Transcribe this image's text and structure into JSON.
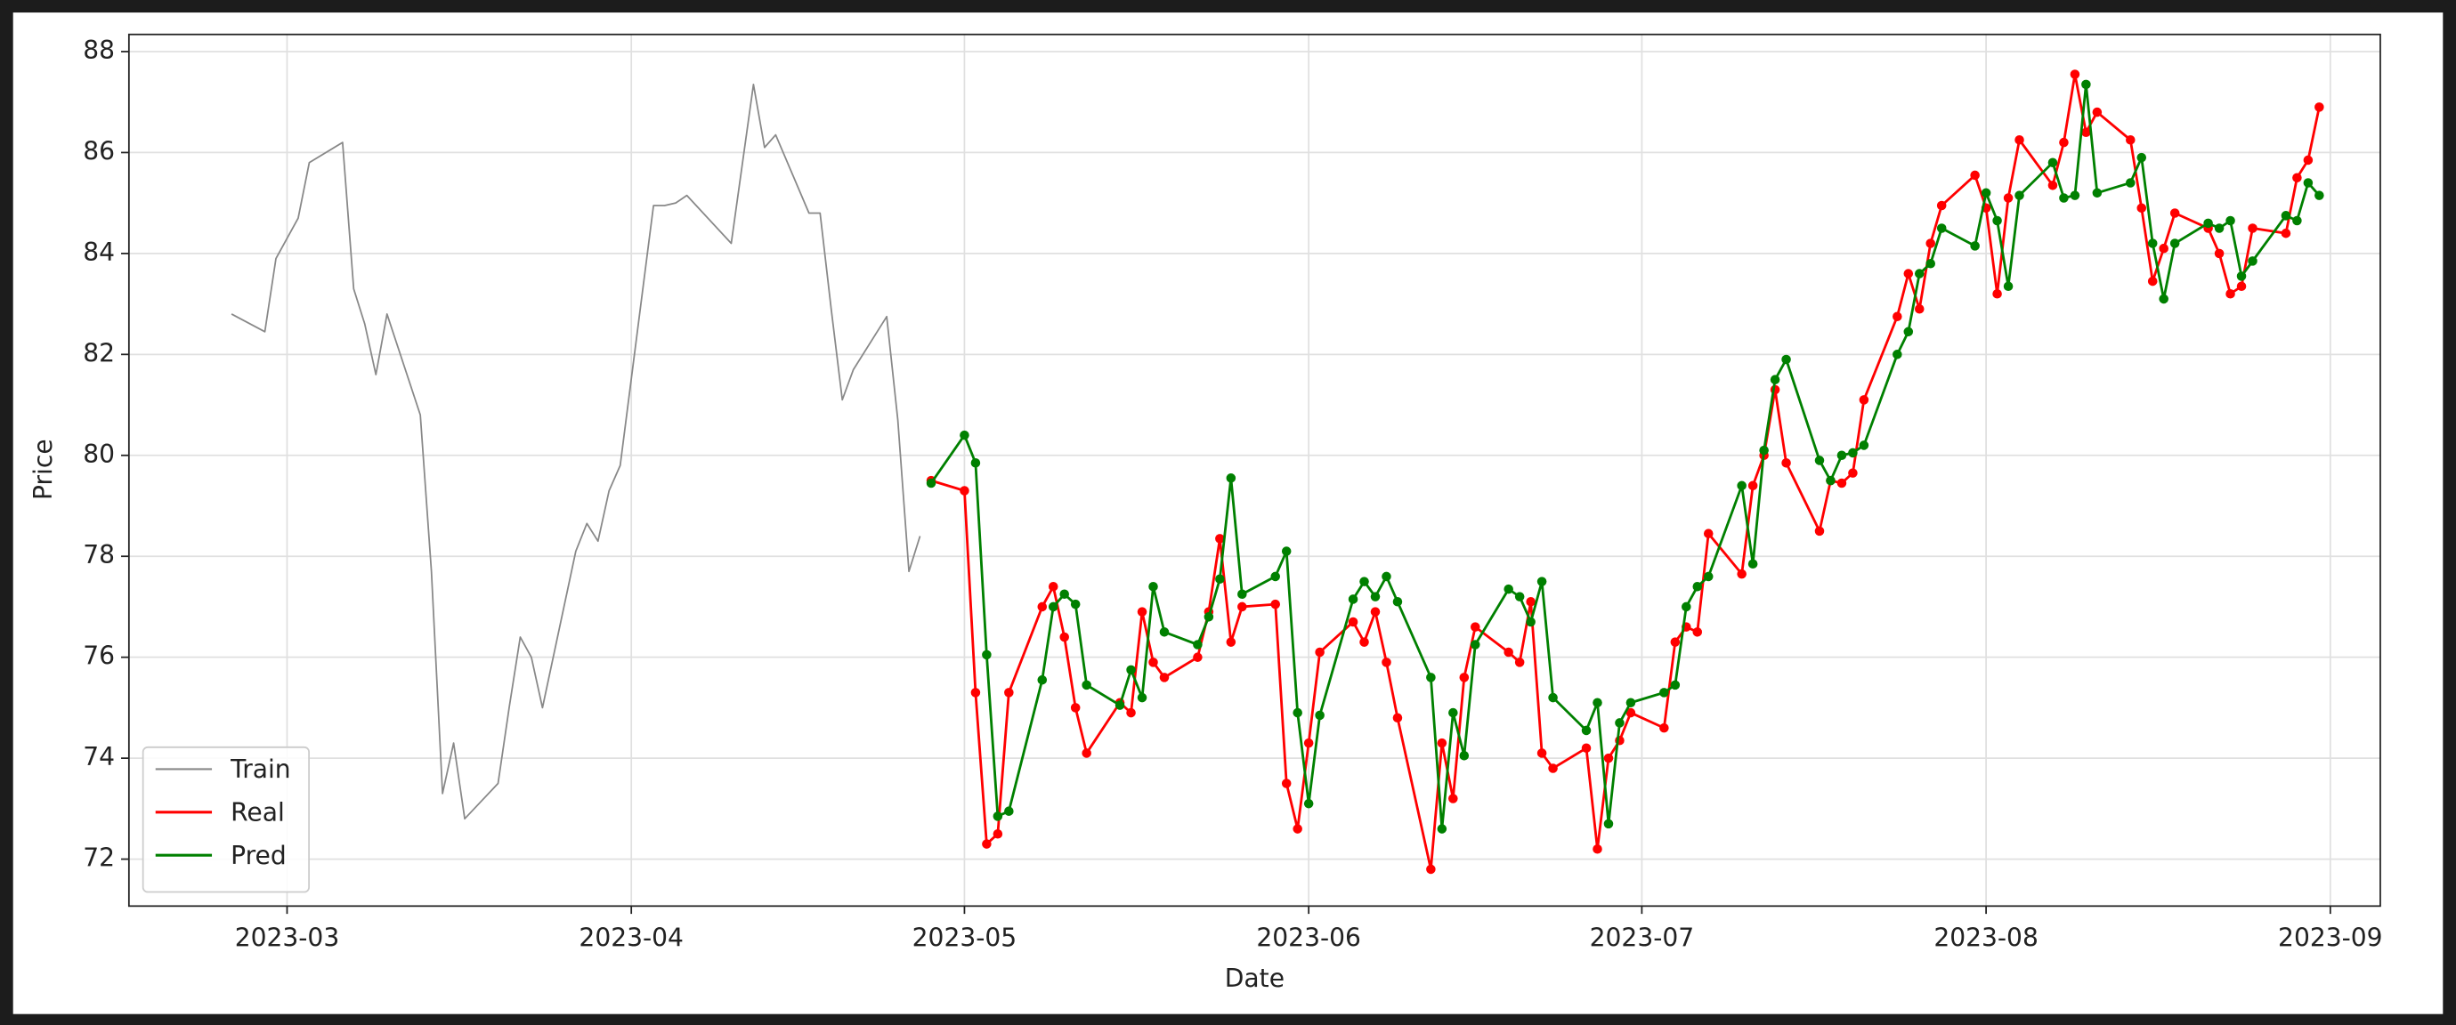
{
  "chart_data": {
    "type": "line",
    "x_label": "Date",
    "y_label": "Price",
    "xlim": [
      19402.76,
      19605.5
    ],
    "xticks": [
      {
        "value": 19417,
        "label": "2023-03"
      },
      {
        "value": 19448,
        "label": "2023-04"
      },
      {
        "value": 19478,
        "label": "2023-05"
      },
      {
        "value": 19509,
        "label": "2023-06"
      },
      {
        "value": 19539,
        "label": "2023-07"
      },
      {
        "value": 19570,
        "label": "2023-08"
      },
      {
        "value": 19601,
        "label": "2023-09"
      }
    ],
    "ylim": [
      71.07,
      88.34
    ],
    "yticks": [
      72,
      74,
      76,
      78,
      80,
      82,
      84,
      86,
      88
    ],
    "grid": true,
    "legend": "lower left",
    "series": [
      {
        "name": "Train",
        "color": "#888888",
        "marker": false,
        "x": [
          19412,
          19415,
          19416,
          19418,
          19419,
          19422,
          19423,
          19424,
          19425,
          19426,
          19429,
          19430,
          19431,
          19432,
          19433,
          19436,
          19437,
          19438,
          19439,
          19440,
          19443,
          19444,
          19445,
          19446,
          19447,
          19450,
          19451,
          19452,
          19453,
          19457,
          19459,
          19460,
          19461,
          19464,
          19465,
          19466,
          19467,
          19468,
          19471,
          19472,
          19473,
          19474
        ],
        "values": [
          82.8,
          82.45,
          83.9,
          84.7,
          85.8,
          86.2,
          83.3,
          82.6,
          81.6,
          82.8,
          80.8,
          77.7,
          73.3,
          74.3,
          72.8,
          73.5,
          75.0,
          76.4,
          76.0,
          75.0,
          78.1,
          78.65,
          78.3,
          79.3,
          79.8,
          84.95,
          84.95,
          85.0,
          85.15,
          84.2,
          87.35,
          86.1,
          86.35,
          84.8,
          84.8,
          82.9,
          81.1,
          81.7,
          82.75,
          80.7,
          77.7,
          78.4
        ]
      },
      {
        "name": "Real",
        "color": "#ff0000",
        "marker": true,
        "x": [
          19475,
          19478,
          19479,
          19480,
          19481,
          19482,
          19485,
          19486,
          19487,
          19488,
          19489,
          19492,
          19493,
          19494,
          19495,
          19496,
          19499,
          19500,
          19501,
          19502,
          19503,
          19506,
          19507,
          19508,
          19509,
          19510,
          19513,
          19514,
          19515,
          19516,
          19517,
          19520,
          19521,
          19522,
          19523,
          19524,
          19527,
          19528,
          19529,
          19530,
          19531,
          19534,
          19535,
          19536,
          19537,
          19538,
          19541,
          19542,
          19543,
          19544,
          19545,
          19548,
          19549,
          19550,
          19551,
          19552,
          19555,
          19556,
          19557,
          19558,
          19559,
          19562,
          19563,
          19564,
          19565,
          19566,
          19569,
          19570,
          19571,
          19572,
          19573,
          19576,
          19577,
          19578,
          19579,
          19580,
          19583,
          19584,
          19585,
          19586,
          19587,
          19590,
          19591,
          19592,
          19593,
          19594,
          19597,
          19598,
          19599,
          19600
        ],
        "values": [
          79.5,
          79.3,
          75.3,
          72.3,
          72.5,
          75.3,
          77.0,
          77.4,
          76.4,
          75.0,
          74.1,
          75.1,
          74.9,
          76.9,
          75.9,
          75.6,
          76.0,
          76.9,
          78.35,
          76.3,
          77.0,
          77.05,
          73.5,
          72.6,
          74.3,
          76.1,
          76.7,
          76.3,
          76.9,
          75.9,
          74.8,
          71.8,
          74.3,
          73.2,
          75.6,
          76.6,
          76.1,
          75.9,
          77.1,
          74.1,
          73.8,
          74.2,
          72.2,
          74.0,
          74.35,
          74.9,
          74.6,
          76.3,
          76.6,
          76.5,
          78.45,
          77.65,
          79.4,
          80.0,
          81.3,
          79.85,
          78.5,
          79.5,
          79.45,
          79.65,
          81.1,
          82.75,
          83.6,
          82.9,
          84.2,
          84.95,
          85.55,
          84.9,
          83.2,
          85.1,
          86.25,
          85.35,
          86.2,
          87.55,
          86.4,
          86.8,
          86.25,
          84.9,
          83.45,
          84.1,
          84.8,
          84.5,
          84.0,
          83.2,
          83.35,
          84.5,
          84.4,
          85.5,
          85.85,
          86.9
        ]
      },
      {
        "name": "Pred",
        "color": "#008000",
        "marker": true,
        "x": [
          19475,
          19478,
          19479,
          19480,
          19481,
          19482,
          19485,
          19486,
          19487,
          19488,
          19489,
          19492,
          19493,
          19494,
          19495,
          19496,
          19499,
          19500,
          19501,
          19502,
          19503,
          19506,
          19507,
          19508,
          19509,
          19510,
          19513,
          19514,
          19515,
          19516,
          19517,
          19520,
          19521,
          19522,
          19523,
          19524,
          19527,
          19528,
          19529,
          19530,
          19531,
          19534,
          19535,
          19536,
          19537,
          19538,
          19541,
          19542,
          19543,
          19544,
          19545,
          19548,
          19549,
          19550,
          19551,
          19552,
          19555,
          19556,
          19557,
          19558,
          19559,
          19562,
          19563,
          19564,
          19565,
          19566,
          19569,
          19570,
          19571,
          19572,
          19573,
          19576,
          19577,
          19578,
          19579,
          19580,
          19583,
          19584,
          19585,
          19586,
          19587,
          19590,
          19591,
          19592,
          19593,
          19594,
          19597,
          19598,
          19599,
          19600
        ],
        "values": [
          79.45,
          80.4,
          79.85,
          76.05,
          72.85,
          72.95,
          75.55,
          77.0,
          77.25,
          77.05,
          75.45,
          75.05,
          75.75,
          75.2,
          77.4,
          76.5,
          76.25,
          76.8,
          77.55,
          79.55,
          77.25,
          77.6,
          78.1,
          74.9,
          73.1,
          74.85,
          77.15,
          77.5,
          77.2,
          77.6,
          77.1,
          75.6,
          72.6,
          74.9,
          74.05,
          76.25,
          77.35,
          77.2,
          76.7,
          77.5,
          75.2,
          74.55,
          75.1,
          72.7,
          74.7,
          75.1,
          75.3,
          75.45,
          77.0,
          77.4,
          77.6,
          79.4,
          77.85,
          80.1,
          81.5,
          81.9,
          79.9,
          79.5,
          80.0,
          80.05,
          80.2,
          82.0,
          82.45,
          83.6,
          83.8,
          84.5,
          84.15,
          85.2,
          84.65,
          83.35,
          85.15,
          85.8,
          85.1,
          85.15,
          87.35,
          85.2,
          85.4,
          85.9,
          84.2,
          83.1,
          84.2,
          84.6,
          84.5,
          84.65,
          83.55,
          83.85,
          84.75,
          84.65,
          85.4,
          85.15
        ]
      }
    ]
  }
}
